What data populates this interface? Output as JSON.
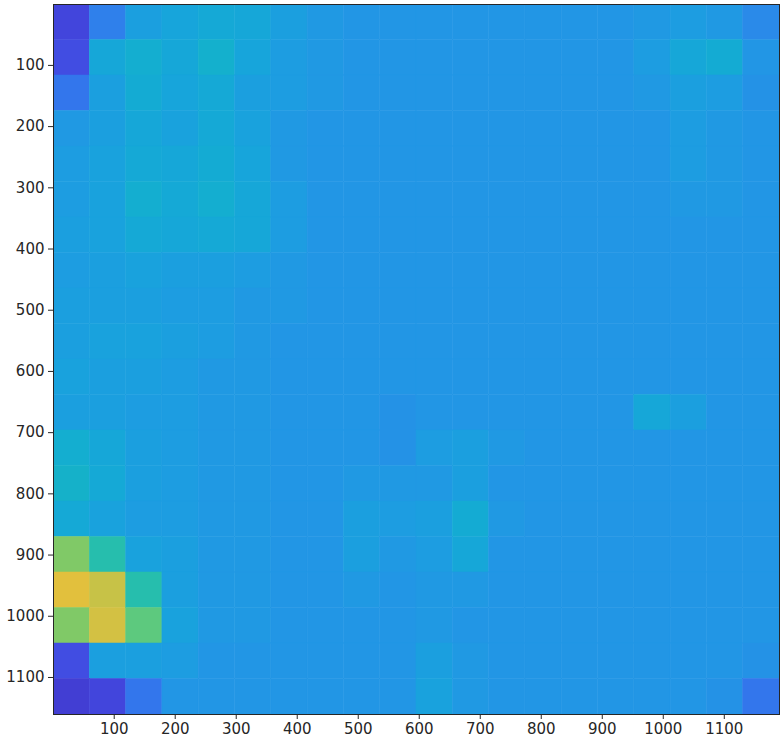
{
  "chart_data": {
    "type": "heatmap",
    "x_edges": [
      0.5,
      60,
      119.5,
      179,
      238.5,
      298,
      357.5,
      417,
      476.5,
      536,
      595.5,
      655,
      714.5,
      774,
      833.5,
      893,
      952.5,
      1012,
      1071.5,
      1131,
      1190.5
    ],
    "y_edges": [
      0.5,
      58.5,
      116.5,
      174.5,
      232.5,
      290.5,
      348.5,
      406.5,
      464.5,
      522.5,
      580.5,
      638.5,
      696.5,
      754.5,
      812.5,
      870.5,
      928.5,
      986.5,
      1044.5,
      1102.5,
      1160.5
    ],
    "cells": [
      [
        0.1,
        0.22,
        0.3,
        0.32,
        0.34,
        0.33,
        0.3,
        0.28,
        0.27,
        0.27,
        0.27,
        0.27,
        0.27,
        0.27,
        0.27,
        0.27,
        0.28,
        0.29,
        0.28,
        0.24
      ],
      [
        0.12,
        0.33,
        0.36,
        0.33,
        0.37,
        0.32,
        0.29,
        0.28,
        0.27,
        0.27,
        0.27,
        0.27,
        0.27,
        0.27,
        0.27,
        0.27,
        0.29,
        0.33,
        0.35,
        0.27
      ],
      [
        0.2,
        0.3,
        0.35,
        0.32,
        0.34,
        0.3,
        0.29,
        0.28,
        0.27,
        0.27,
        0.27,
        0.27,
        0.27,
        0.27,
        0.27,
        0.27,
        0.28,
        0.3,
        0.29,
        0.26
      ],
      [
        0.28,
        0.3,
        0.33,
        0.31,
        0.34,
        0.31,
        0.28,
        0.27,
        0.27,
        0.27,
        0.27,
        0.27,
        0.27,
        0.27,
        0.27,
        0.27,
        0.27,
        0.29,
        0.28,
        0.27
      ],
      [
        0.29,
        0.31,
        0.34,
        0.33,
        0.35,
        0.32,
        0.28,
        0.27,
        0.27,
        0.27,
        0.27,
        0.27,
        0.27,
        0.27,
        0.27,
        0.27,
        0.27,
        0.29,
        0.28,
        0.27
      ],
      [
        0.29,
        0.31,
        0.36,
        0.34,
        0.36,
        0.33,
        0.29,
        0.27,
        0.27,
        0.27,
        0.27,
        0.27,
        0.27,
        0.27,
        0.27,
        0.27,
        0.27,
        0.28,
        0.28,
        0.27
      ],
      [
        0.3,
        0.31,
        0.34,
        0.33,
        0.34,
        0.33,
        0.29,
        0.27,
        0.27,
        0.27,
        0.27,
        0.27,
        0.27,
        0.27,
        0.27,
        0.27,
        0.27,
        0.27,
        0.27,
        0.27
      ],
      [
        0.29,
        0.3,
        0.31,
        0.3,
        0.3,
        0.29,
        0.28,
        0.27,
        0.27,
        0.27,
        0.27,
        0.27,
        0.27,
        0.27,
        0.27,
        0.27,
        0.27,
        0.27,
        0.27,
        0.27
      ],
      [
        0.3,
        0.3,
        0.3,
        0.29,
        0.29,
        0.28,
        0.28,
        0.27,
        0.27,
        0.27,
        0.27,
        0.27,
        0.27,
        0.27,
        0.27,
        0.27,
        0.27,
        0.27,
        0.27,
        0.27
      ],
      [
        0.3,
        0.31,
        0.31,
        0.3,
        0.29,
        0.28,
        0.27,
        0.27,
        0.27,
        0.27,
        0.27,
        0.27,
        0.27,
        0.27,
        0.27,
        0.27,
        0.27,
        0.27,
        0.27,
        0.27
      ],
      [
        0.31,
        0.3,
        0.3,
        0.29,
        0.28,
        0.28,
        0.27,
        0.27,
        0.27,
        0.27,
        0.27,
        0.27,
        0.27,
        0.27,
        0.27,
        0.27,
        0.27,
        0.27,
        0.27,
        0.27
      ],
      [
        0.3,
        0.3,
        0.29,
        0.29,
        0.28,
        0.28,
        0.27,
        0.27,
        0.27,
        0.26,
        0.27,
        0.27,
        0.27,
        0.27,
        0.27,
        0.27,
        0.33,
        0.3,
        0.27,
        0.27
      ],
      [
        0.36,
        0.33,
        0.3,
        0.29,
        0.28,
        0.28,
        0.27,
        0.27,
        0.27,
        0.26,
        0.29,
        0.3,
        0.28,
        0.27,
        0.27,
        0.27,
        0.27,
        0.27,
        0.27,
        0.27
      ],
      [
        0.38,
        0.34,
        0.3,
        0.29,
        0.28,
        0.28,
        0.27,
        0.27,
        0.28,
        0.28,
        0.28,
        0.3,
        0.27,
        0.27,
        0.27,
        0.27,
        0.27,
        0.27,
        0.27,
        0.27
      ],
      [
        0.34,
        0.31,
        0.29,
        0.29,
        0.28,
        0.28,
        0.27,
        0.27,
        0.3,
        0.29,
        0.3,
        0.35,
        0.28,
        0.27,
        0.27,
        0.27,
        0.27,
        0.27,
        0.27,
        0.27
      ],
      [
        0.6,
        0.45,
        0.31,
        0.3,
        0.28,
        0.28,
        0.27,
        0.27,
        0.3,
        0.28,
        0.29,
        0.33,
        0.27,
        0.27,
        0.27,
        0.27,
        0.27,
        0.27,
        0.27,
        0.27
      ],
      [
        0.75,
        0.7,
        0.45,
        0.3,
        0.28,
        0.28,
        0.27,
        0.27,
        0.28,
        0.27,
        0.28,
        0.28,
        0.27,
        0.27,
        0.27,
        0.27,
        0.27,
        0.27,
        0.27,
        0.27
      ],
      [
        0.6,
        0.72,
        0.55,
        0.31,
        0.28,
        0.28,
        0.27,
        0.27,
        0.27,
        0.27,
        0.28,
        0.27,
        0.27,
        0.27,
        0.27,
        0.27,
        0.27,
        0.27,
        0.27,
        0.27
      ],
      [
        0.12,
        0.3,
        0.3,
        0.29,
        0.27,
        0.27,
        0.27,
        0.27,
        0.27,
        0.27,
        0.3,
        0.28,
        0.27,
        0.27,
        0.27,
        0.27,
        0.27,
        0.27,
        0.27,
        0.26
      ],
      [
        0.08,
        0.1,
        0.2,
        0.27,
        0.27,
        0.27,
        0.27,
        0.27,
        0.27,
        0.27,
        0.31,
        0.28,
        0.27,
        0.27,
        0.27,
        0.27,
        0.27,
        0.27,
        0.26,
        0.2
      ]
    ],
    "clim": [
      0,
      1
    ],
    "xlim": [
      0.5,
      1190.5
    ],
    "ylim": [
      0.5,
      1160.5
    ],
    "xticks": [
      100,
      200,
      300,
      400,
      500,
      600,
      700,
      800,
      900,
      1000,
      1100
    ],
    "yticks": [
      100,
      200,
      300,
      400,
      500,
      600,
      700,
      800,
      900,
      1000,
      1100
    ]
  }
}
